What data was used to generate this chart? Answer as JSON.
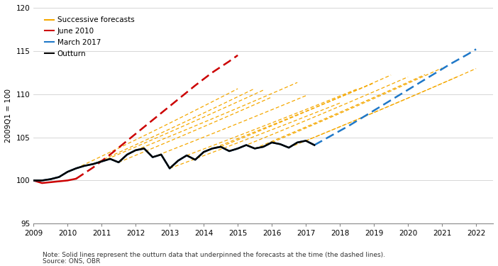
{
  "ylabel": "2009Q1 = 100",
  "ylim": [
    95,
    120
  ],
  "xlim": [
    2009.0,
    2022.5
  ],
  "yticks": [
    95,
    100,
    105,
    110,
    115,
    120
  ],
  "xticks": [
    2009,
    2010,
    2011,
    2012,
    2013,
    2014,
    2015,
    2016,
    2017,
    2018,
    2019,
    2020,
    2021,
    2022
  ],
  "note": "Note: Solid lines represent the outturn data that underpinned the forecasts at the time (the dashed lines).",
  "source": "Source: ONS, OBR",
  "legend_items": [
    {
      "label": "Successive forecasts",
      "color": "#F5A800"
    },
    {
      "label": "June 2010",
      "color": "#CC0000"
    },
    {
      "label": "March 2017",
      "color": "#1F78C8"
    },
    {
      "label": "Outturn",
      "color": "#000000"
    }
  ],
  "outturn_x": [
    2009.0,
    2009.25,
    2009.5,
    2009.75,
    2010.0,
    2010.25,
    2010.5,
    2010.75,
    2011.0,
    2011.25,
    2011.5,
    2011.75,
    2012.0,
    2012.25,
    2012.5,
    2012.75,
    2013.0,
    2013.25,
    2013.5,
    2013.75,
    2014.0,
    2014.25,
    2014.5,
    2014.75,
    2015.0,
    2015.25,
    2015.5,
    2015.75,
    2016.0,
    2016.25,
    2016.5,
    2016.75,
    2017.0,
    2017.25
  ],
  "outturn_y": [
    100.0,
    100.0,
    100.15,
    100.4,
    101.0,
    101.4,
    101.7,
    101.9,
    102.2,
    102.5,
    102.1,
    103.0,
    103.5,
    103.7,
    102.7,
    103.0,
    101.4,
    102.3,
    102.9,
    102.4,
    103.3,
    103.7,
    103.9,
    103.4,
    103.7,
    104.1,
    103.7,
    103.9,
    104.4,
    104.2,
    103.8,
    104.4,
    104.6,
    104.1
  ],
  "june2010_solid_x": [
    2009.0,
    2009.25,
    2009.5,
    2009.75,
    2010.0,
    2010.25
  ],
  "june2010_solid_y": [
    100.0,
    99.7,
    99.8,
    99.9,
    100.0,
    100.2
  ],
  "june2010_dash_x": [
    2010.25,
    2010.75,
    2011.25,
    2011.75,
    2012.25,
    2012.75,
    2013.25,
    2013.75,
    2014.25,
    2014.75,
    2015.0
  ],
  "june2010_dash_y": [
    100.2,
    101.5,
    103.0,
    104.6,
    106.2,
    107.8,
    109.4,
    111.0,
    112.5,
    113.8,
    114.5
  ],
  "march2017_solid_x": [
    2009.0,
    2009.25,
    2009.5,
    2009.75,
    2010.0,
    2010.25,
    2010.5,
    2010.75,
    2011.0,
    2011.25,
    2011.5,
    2011.75,
    2012.0,
    2012.25,
    2012.5,
    2012.75,
    2013.0,
    2013.25,
    2013.5,
    2013.75,
    2014.0,
    2014.25,
    2014.5,
    2014.75,
    2015.0,
    2015.25,
    2015.5,
    2015.75,
    2016.0,
    2016.25,
    2016.5,
    2016.75,
    2017.0,
    2017.25
  ],
  "march2017_solid_y": [
    100.0,
    100.0,
    100.15,
    100.4,
    101.0,
    101.4,
    101.7,
    101.9,
    102.2,
    102.5,
    102.1,
    103.0,
    103.5,
    103.7,
    102.7,
    103.0,
    101.4,
    102.3,
    102.9,
    102.4,
    103.3,
    103.7,
    103.9,
    103.4,
    103.7,
    104.1,
    103.7,
    103.9,
    104.4,
    104.2,
    103.8,
    104.4,
    104.6,
    104.1
  ],
  "march2017_dash_x": [
    2017.25,
    2017.75,
    2018.25,
    2018.75,
    2019.25,
    2019.75,
    2020.25,
    2020.75,
    2021.25,
    2021.75,
    2022.0
  ],
  "march2017_dash_y": [
    104.1,
    105.2,
    106.3,
    107.5,
    108.7,
    109.9,
    111.1,
    112.3,
    113.5,
    114.6,
    115.2
  ],
  "background_color": "#ffffff",
  "grid_color": "#d0d0d0",
  "successive_color": "#F5A800",
  "red_color": "#CC0000",
  "blue_color": "#1F78C8"
}
